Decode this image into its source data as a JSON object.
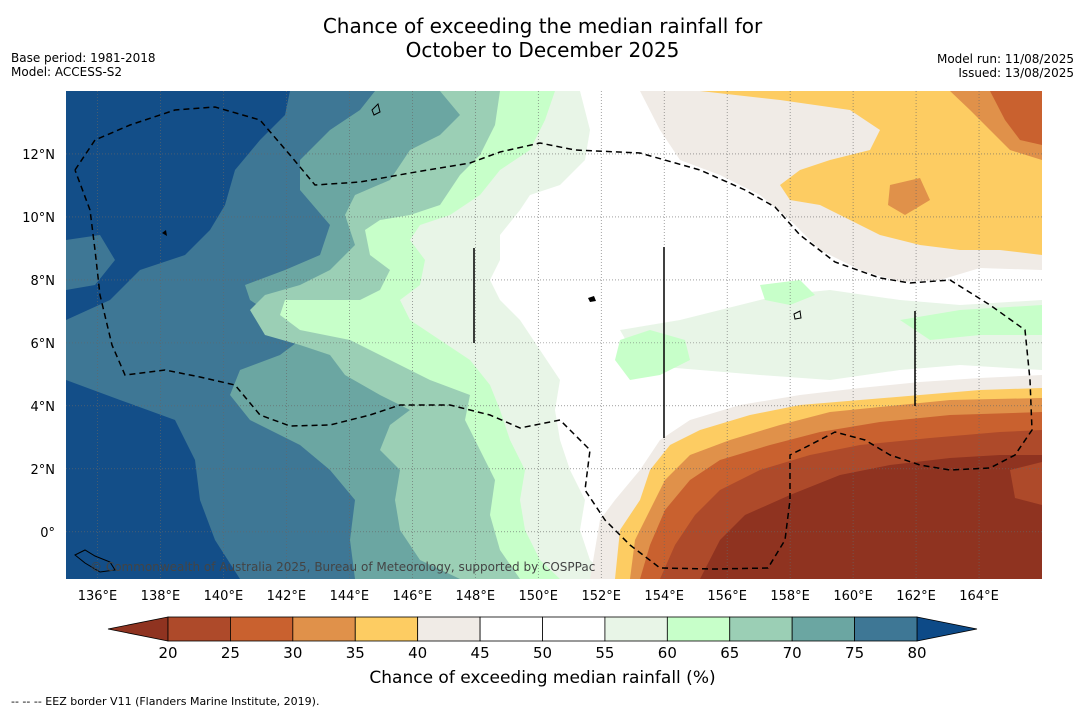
{
  "title": {
    "line1": "Chance of exceeding the median rainfall for",
    "line2": "October to December 2025"
  },
  "meta_left": {
    "base_period": "Base period: 1981-2018",
    "model": "Model: ACCESS-S2"
  },
  "meta_right": {
    "model_run": "Model run: 11/08/2025",
    "issued": "Issued: 13/08/2025"
  },
  "map": {
    "lon_range": [
      135,
      166
    ],
    "lat_range": [
      -1.5,
      14
    ],
    "x_ticks": [
      "136°E",
      "138°E",
      "140°E",
      "142°E",
      "144°E",
      "146°E",
      "148°E",
      "150°E",
      "152°E",
      "154°E",
      "156°E",
      "158°E",
      "160°E",
      "162°E",
      "164°E"
    ],
    "x_tick_values": [
      136,
      138,
      140,
      142,
      144,
      146,
      148,
      150,
      152,
      154,
      156,
      158,
      160,
      162,
      164
    ],
    "y_ticks": [
      "12°N",
      "10°N",
      "8°N",
      "6°N",
      "4°N",
      "2°N",
      "0°"
    ],
    "y_tick_values": [
      12,
      10,
      8,
      6,
      4,
      2,
      0
    ],
    "gridlines": true,
    "copyright": "© Commonwealth of Australia 2025, Bureau of Meteorology, supported by COSPPac"
  },
  "colorbar": {
    "title": "Chance of exceeding median rainfall (%)",
    "labels": [
      "20",
      "25",
      "30",
      "35",
      "40",
      "45",
      "50",
      "55",
      "60",
      "65",
      "70",
      "75",
      "80"
    ],
    "colors": [
      "#ae4a2a",
      "#c9612f",
      "#e0914a",
      "#fdcc62",
      "#f0ebe6",
      "#ffffff",
      "#ffffff",
      "#e8f5e7",
      "#c7ffc9",
      "#9bcfb5",
      "#6ba6a2",
      "#3e7795",
      "#134e88"
    ],
    "under_color": "#8f3320",
    "over_color": "#0d4a87"
  },
  "footer": {
    "legend": "-- -- -- EEZ border V11 (Flanders Marine Institute, 2019)."
  }
}
